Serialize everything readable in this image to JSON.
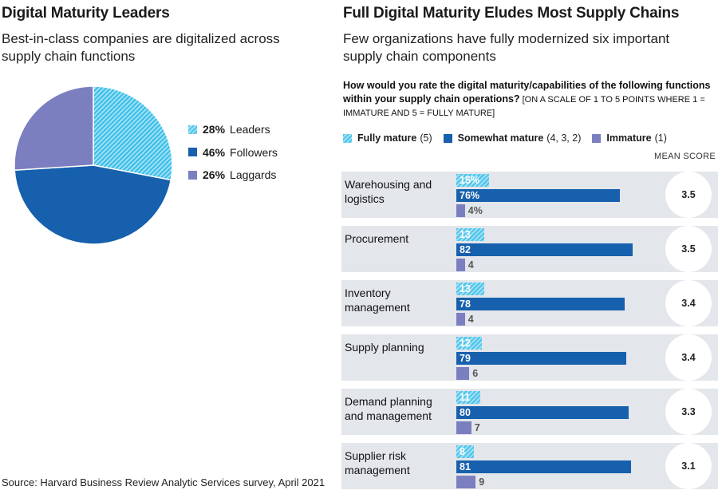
{
  "left": {
    "title": "Digital Maturity Leaders",
    "subtitle_line1": "Best-in-class companies are digitalized across",
    "subtitle_line2": "supply chain functions"
  },
  "right": {
    "title": "Full Digital Maturity Eludes Most Supply Chains",
    "subtitle_line1": "Few organizations have fully modernized six important",
    "subtitle_line2": "supply chain components",
    "question_line1": "How would you rate the digital maturity/capabilities of the following functions",
    "question_line2_strong": "within your supply chain operations?",
    "question_line2_scale": " [ON A SCALE OF 1 TO 5 POINTS WHERE 1 =",
    "question_line3": "IMMATURE AND 5 = FULLY MATURE]",
    "mean_score_label": "MEAN SCORE"
  },
  "colors": {
    "leaders": "#38bde8",
    "followers": "#1660ad",
    "laggards": "#7b7fc0",
    "row_bg": "#e3e6ea"
  },
  "chart_data": [
    {
      "type": "pie",
      "slices": [
        {
          "label": "Leaders",
          "pct_text": "28%",
          "value": 28
        },
        {
          "label": "Followers",
          "pct_text": "46%",
          "value": 46
        },
        {
          "label": "Laggards",
          "pct_text": "26%",
          "value": 26
        }
      ]
    },
    {
      "type": "bar",
      "legend": [
        {
          "label": "Fully mature",
          "scale": "(5)"
        },
        {
          "label": "Somewhat mature",
          "scale": "(4, 3, 2)"
        },
        {
          "label": "Immature",
          "scale": "(1)"
        }
      ],
      "categories": [
        {
          "line1": "Warehousing and",
          "line2": "logistics",
          "mean": "3.5"
        },
        {
          "line1": "Procurement",
          "line2": "",
          "mean": "3.5"
        },
        {
          "line1": "Inventory management",
          "line2": "",
          "mean": "3.4"
        },
        {
          "line1": "Supply planning",
          "line2": "",
          "mean": "3.4"
        },
        {
          "line1": "Demand planning",
          "line2": "and management",
          "mean": "3.3"
        },
        {
          "line1": "Supplier risk",
          "line2": "management",
          "mean": "3.1"
        }
      ],
      "series": [
        {
          "name": "Fully mature",
          "values": [
            15,
            13,
            13,
            12,
            11,
            8
          ],
          "labels": [
            "15%",
            "13",
            "13",
            "12",
            "11",
            "8"
          ]
        },
        {
          "name": "Somewhat mature",
          "values": [
            76,
            82,
            78,
            79,
            80,
            81
          ],
          "labels": [
            "76%",
            "82",
            "78",
            "79",
            "80",
            "81"
          ]
        },
        {
          "name": "Immature",
          "values": [
            4,
            4,
            4,
            6,
            7,
            9
          ],
          "labels": [
            "4%",
            "4",
            "4",
            "6",
            "7",
            "9"
          ]
        }
      ]
    }
  ],
  "source": "Source: Harvard Business Review Analytic Services survey, April 2021"
}
